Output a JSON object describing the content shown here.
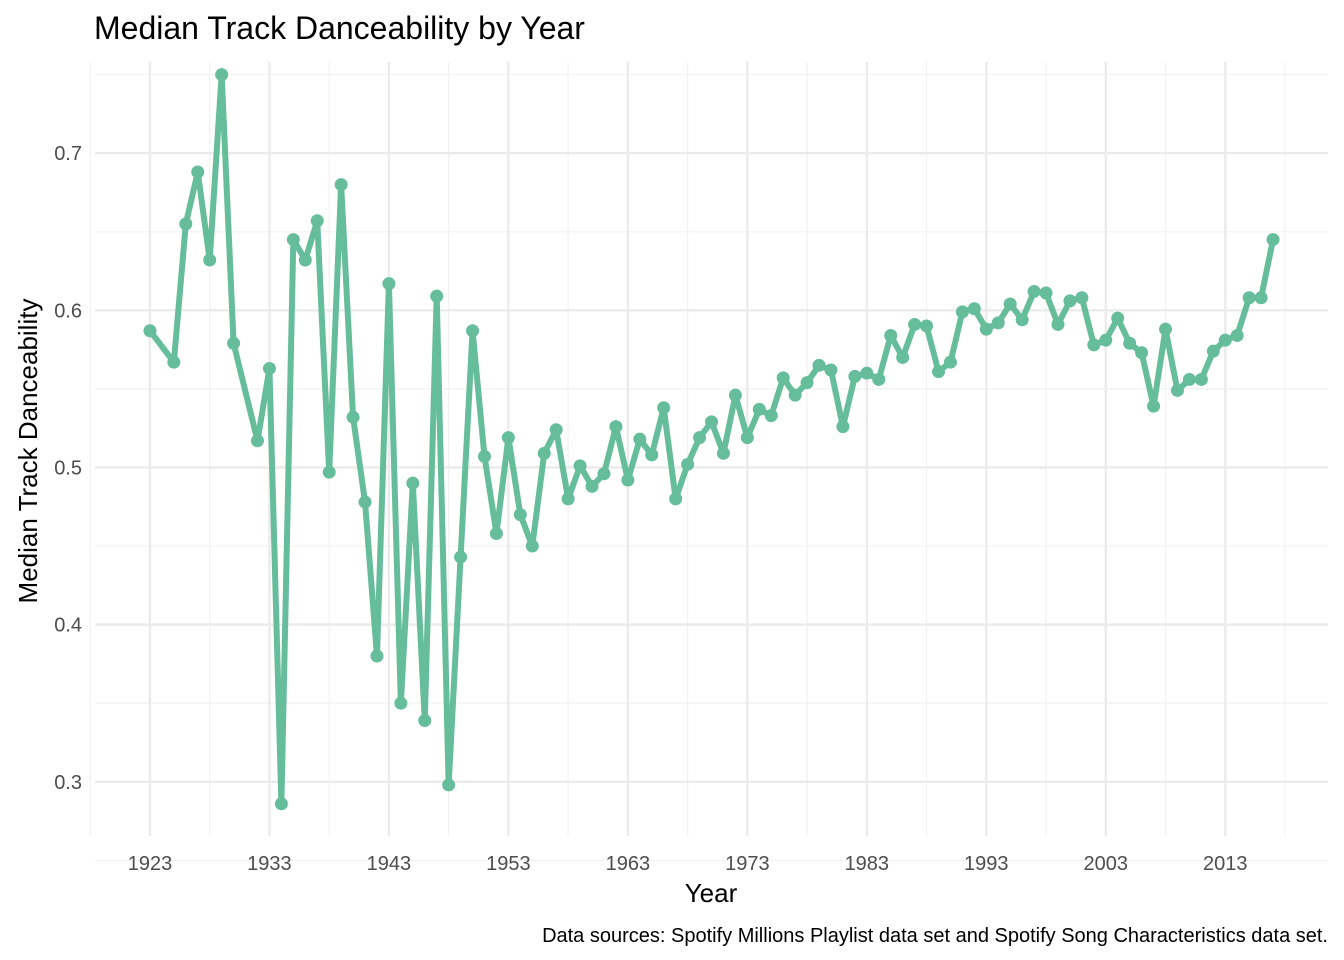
{
  "chart_data": {
    "type": "line",
    "title": "Median Track Danceability by Year",
    "xlabel": "Year",
    "ylabel": "Median Track Danceability",
    "caption": "Data sources: Spotify Millions Playlist data set and Spotify Song Characteristics data set.",
    "xlim": [
      1918.4,
      2021.6
    ],
    "ylim": [
      0.2655,
      0.758
    ],
    "x_ticks": [
      1923,
      1933,
      1943,
      1953,
      1963,
      1973,
      1983,
      1993,
      2003,
      2013
    ],
    "y_ticks": [
      0.3,
      0.4,
      0.5,
      0.6,
      0.7
    ],
    "grid": true,
    "legend": "none",
    "colors": {
      "line": "#66bd9c",
      "grid_major": "#ebebeb",
      "grid_minor": "#f2f2f2"
    },
    "series": [
      {
        "x": [
          1923,
          1925,
          1926,
          1927,
          1928,
          1929,
          1930,
          1932,
          1933,
          1934,
          1935,
          1936,
          1937,
          1938,
          1939,
          1940,
          1941,
          1942,
          1943,
          1944,
          1945,
          1946,
          1947,
          1948,
          1949,
          1950,
          1951,
          1952,
          1953,
          1954,
          1955,
          1956,
          1957,
          1958,
          1959,
          1960,
          1961,
          1962,
          1963,
          1964,
          1965,
          1966,
          1967,
          1968,
          1969,
          1970,
          1971,
          1972,
          1973,
          1974,
          1975,
          1976,
          1977,
          1978,
          1979,
          1980,
          1981,
          1982,
          1983,
          1984,
          1985,
          1986,
          1987,
          1988,
          1989,
          1990,
          1991,
          1992,
          1993,
          1994,
          1995,
          1996,
          1997,
          1998,
          1999,
          2000,
          2001,
          2002,
          2003,
          2004,
          2005,
          2006,
          2007,
          2008,
          2009,
          2010,
          2011,
          2012,
          2013,
          2014,
          2015,
          2016,
          2017
        ],
        "values": [
          0.587,
          0.567,
          0.655,
          0.688,
          0.632,
          0.75,
          0.579,
          0.517,
          0.563,
          0.286,
          0.645,
          0.632,
          0.657,
          0.497,
          0.68,
          0.532,
          0.478,
          0.38,
          0.617,
          0.35,
          0.49,
          0.339,
          0.609,
          0.298,
          0.443,
          0.587,
          0.507,
          0.458,
          0.519,
          0.47,
          0.45,
          0.509,
          0.524,
          0.48,
          0.501,
          0.488,
          0.496,
          0.526,
          0.492,
          0.518,
          0.508,
          0.538,
          0.48,
          0.502,
          0.519,
          0.529,
          0.509,
          0.546,
          0.519,
          0.537,
          0.533,
          0.557,
          0.546,
          0.554,
          0.565,
          0.562,
          0.526,
          0.558,
          0.56,
          0.556,
          0.584,
          0.57,
          0.591,
          0.59,
          0.561,
          0.567,
          0.599,
          0.601,
          0.588,
          0.592,
          0.604,
          0.594,
          0.612,
          0.611,
          0.591,
          0.606,
          0.608,
          0.578,
          0.581,
          0.595,
          0.579,
          0.573,
          0.539,
          0.588,
          0.549,
          0.556,
          0.556,
          0.574,
          0.581,
          0.584,
          0.608,
          0.608,
          0.645
        ]
      }
    ]
  }
}
